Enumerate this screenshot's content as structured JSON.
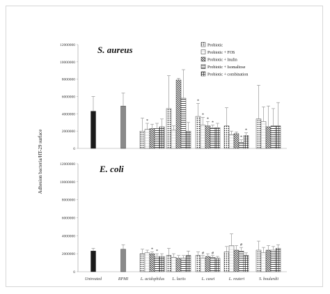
{
  "chart_data": [
    {
      "type": "bar",
      "title": "S. aureus",
      "ylabel": "Adhesion bacteria/HT-29 surface",
      "ylim": [
        0,
        12000000
      ],
      "yticks": [
        "0",
        "2000000",
        "4000000",
        "6000000",
        "8000000",
        "10000000",
        "12000000"
      ],
      "categories": [
        "Untreated",
        "RPMI",
        "L. acidophilus",
        "L. lactis",
        "L. casei",
        "L. reuteri",
        "S. boulardii"
      ],
      "controls": [
        {
          "category": "Untreated",
          "value": 4300000,
          "error": 1700000,
          "color": "#1a1a1a"
        },
        {
          "category": "RPMI",
          "value": 4900000,
          "error": 1500000,
          "color": "#8a8a8a"
        }
      ],
      "legend": [
        "Probiotic",
        "Probiotic + FOS",
        "Probiotic + Inulin",
        "Probiotic + Isomaltose",
        "Probiotic + combination"
      ],
      "series": [
        {
          "name": "Probiotic",
          "values": [
            null,
            null,
            2000000,
            4600000,
            3700000,
            2600000,
            3400000
          ],
          "errors": [
            null,
            null,
            1500000,
            3800000,
            1500000,
            2100000,
            3900000
          ]
        },
        {
          "name": "Probiotic + FOS",
          "values": [
            null,
            null,
            2200000,
            2100000,
            2700000,
            1600000,
            3100000
          ],
          "errors": [
            null,
            null,
            700000,
            500000,
            900000,
            400000,
            1700000
          ]
        },
        {
          "name": "Probiotic + Inulin",
          "values": [
            null,
            null,
            2300000,
            7900000,
            2600000,
            1700000,
            2500000
          ],
          "errors": [
            null,
            null,
            500000,
            200000,
            500000,
            200000,
            2400000
          ]
        },
        {
          "name": "Probiotic + Isomaltose",
          "values": [
            null,
            null,
            2300000,
            5800000,
            2400000,
            700000,
            2600000
          ],
          "errors": [
            null,
            null,
            600000,
            3300000,
            300000,
            300000,
            2000000
          ]
        },
        {
          "name": "Probiotic + combination",
          "values": [
            null,
            null,
            2500000,
            2000000,
            2400000,
            1500000,
            2600000
          ],
          "errors": [
            null,
            null,
            900000,
            1000000,
            500000,
            300000,
            2700000
          ]
        }
      ],
      "markers": [
        {
          "category": "L. acidophilus",
          "series": "Probiotic + FOS",
          "text": "*"
        },
        {
          "category": "L. casei",
          "series": "Probiotic",
          "text": "*"
        },
        {
          "category": "L. casei",
          "series": "Probiotic + FOS",
          "text": "*"
        },
        {
          "category": "L. casei",
          "series": "Probiotic + Inulin",
          "text": "*"
        },
        {
          "category": "L. casei",
          "series": "Probiotic + Isomaltose",
          "text": "*"
        },
        {
          "category": "L. reuteri",
          "series": "Probiotic + Isomaltose",
          "text": "*"
        },
        {
          "category": "L. reuteri",
          "series": "Probiotic + combination",
          "text": "*"
        }
      ]
    },
    {
      "type": "bar",
      "title": "E. coli",
      "ylabel": "Adhesion bacteria/HT-29 surface",
      "ylim": [
        0,
        12000000
      ],
      "yticks": [
        "0",
        "2000000",
        "4000000",
        "6000000",
        "8000000",
        "10000000",
        "12000000"
      ],
      "categories": [
        "Untreated",
        "RPMI",
        "L. acidophilus",
        "L. lactis",
        "L. casei",
        "L. reuteri",
        "S. boulardii"
      ],
      "controls": [
        {
          "category": "Untreated",
          "value": 2300000,
          "error": 300000,
          "color": "#1a1a1a"
        },
        {
          "category": "RPMI",
          "value": 2500000,
          "error": 500000,
          "color": "#8a8a8a"
        }
      ],
      "series": [
        {
          "name": "Probiotic",
          "values": [
            null,
            null,
            2000000,
            1800000,
            1800000,
            2200000,
            2400000
          ],
          "errors": [
            null,
            null,
            500000,
            800000,
            400000,
            600000,
            1000000
          ]
        },
        {
          "name": "Probiotic + FOS",
          "values": [
            null,
            null,
            2100000,
            1600000,
            1500000,
            2900000,
            2100000
          ],
          "errors": [
            null,
            null,
            300000,
            400000,
            300000,
            1300000,
            600000
          ]
        },
        {
          "name": "Probiotic + Inulin",
          "values": [
            null,
            null,
            2000000,
            1500000,
            1700000,
            2400000,
            2400000
          ],
          "errors": [
            null,
            null,
            200000,
            300000,
            300000,
            500000,
            500000
          ]
        },
        {
          "name": "Probiotic + Isomaltose",
          "values": [
            null,
            null,
            1700000,
            1500000,
            1600000,
            2300000,
            2400000
          ],
          "errors": [
            null,
            null,
            300000,
            300000,
            200000,
            400000,
            400000
          ]
        },
        {
          "name": "Probiotic + combination",
          "values": [
            null,
            null,
            1700000,
            1800000,
            1500000,
            1800000,
            2600000
          ],
          "errors": [
            null,
            null,
            300000,
            500000,
            200000,
            300000,
            400000
          ]
        }
      ],
      "markers": [
        {
          "category": "L. acidophilus",
          "series": "Probiotic + Inulin",
          "text": "*"
        },
        {
          "category": "L. acidophilus",
          "series": "Probiotic + Isomaltose",
          "text": "*"
        },
        {
          "category": "L. casei",
          "series": "Probiotic + FOS",
          "text": "#"
        },
        {
          "category": "L. casei",
          "series": "Probiotic + Isomaltose",
          "text": "#"
        },
        {
          "category": "L. reuteri",
          "series": "Probiotic + Isomaltose",
          "text": "#"
        }
      ]
    }
  ],
  "colors": {
    "probiotic": "#1a1a1a",
    "rpmi": "#8a8a8a",
    "axis": "#999999",
    "error_bar": "#888888"
  }
}
